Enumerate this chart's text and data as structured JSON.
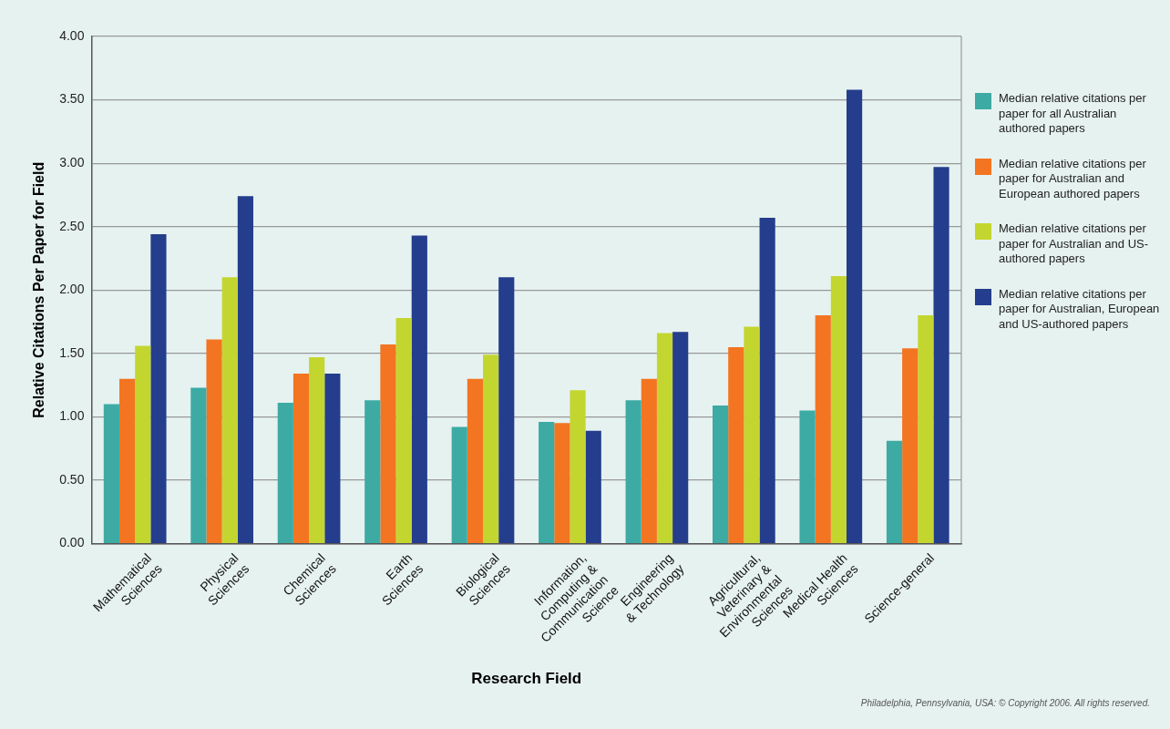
{
  "chart_data": {
    "type": "bar",
    "xlabel": "Research Field",
    "ylabel": "Relative Citations Per Paper for Field",
    "categories": [
      "Mathematical\nSciences",
      "Physical\nSciences",
      "Chemical\nSciences",
      "Earth\nSciences",
      "Biological\nSciences",
      "Information,\nComputing &\nCommunication\nScience",
      "Engineering\n& Technology",
      "Agricultural,\nVeterinary &\nEnvironmental\nSciences",
      "Medical Health\nSciences",
      "Science-general"
    ],
    "series": [
      {
        "name": "Median relative citations per paper for all Australian authored papers",
        "color": "#3daba3",
        "values": [
          1.1,
          1.23,
          1.11,
          1.13,
          0.92,
          0.96,
          1.13,
          1.09,
          1.05,
          0.81
        ]
      },
      {
        "name": "Median relative citations per paper for Australian and European authored papers",
        "color": "#f37521",
        "values": [
          1.3,
          1.61,
          1.34,
          1.57,
          1.3,
          0.95,
          1.3,
          1.55,
          1.8,
          1.54
        ]
      },
      {
        "name": "Median relative citations per paper for Australian and US-authored papers",
        "color": "#c3d62f",
        "values": [
          1.56,
          2.1,
          1.47,
          1.78,
          1.49,
          1.21,
          1.66,
          1.71,
          2.11,
          1.8
        ]
      },
      {
        "name": "Median relative citations per paper for Australian, European and US-authored papers",
        "color": "#243d8c",
        "values": [
          2.44,
          2.74,
          1.34,
          2.43,
          2.1,
          0.89,
          1.67,
          2.57,
          3.58,
          2.97
        ]
      }
    ],
    "ylim": [
      0,
      4
    ],
    "yticks": [
      {
        "value": 0,
        "label": "0.00"
      },
      {
        "value": 0.5,
        "label": "0.50"
      },
      {
        "value": 1,
        "label": "1.00"
      },
      {
        "value": 1.5,
        "label": "1.50"
      },
      {
        "value": 2,
        "label": "2.00"
      },
      {
        "value": 2.5,
        "label": "2.50"
      },
      {
        "value": 3,
        "label": "3.00"
      },
      {
        "value": 3.5,
        "label": "3.50"
      },
      {
        "value": 4,
        "label": "4.00"
      }
    ],
    "grid": "y",
    "legend": "right",
    "annotations": [
      "Philadelphia, Pennsylvania, USA: © Copyright 2006. All rights reserved."
    ]
  }
}
